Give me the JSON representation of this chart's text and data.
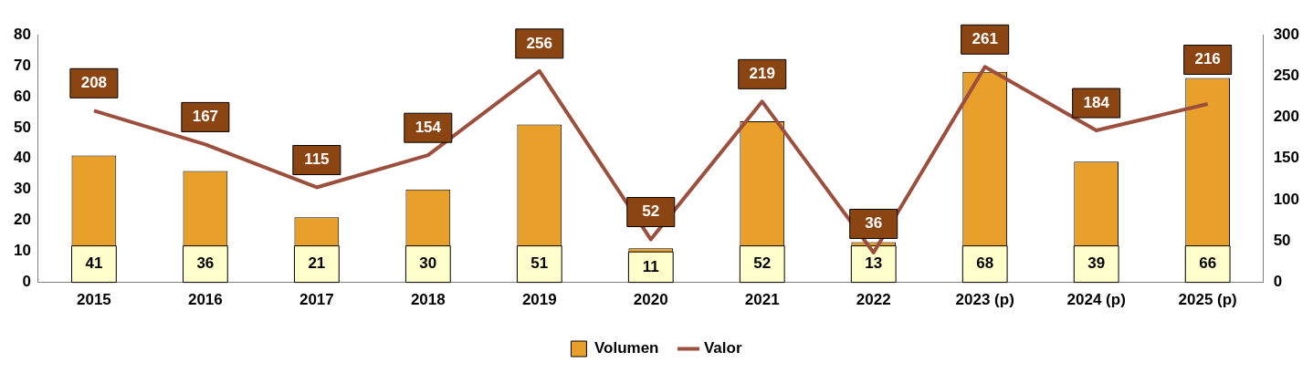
{
  "chart_data": {
    "type": "bar",
    "categories": [
      "2015",
      "2016",
      "2017",
      "2018",
      "2019",
      "2020",
      "2021",
      "2022",
      "2023 (p)",
      "2024 (p)",
      "2025 (p)"
    ],
    "series": [
      {
        "name": "Volumen",
        "color": "#e8a02a",
        "values": [
          41,
          36,
          21,
          30,
          51,
          11,
          52,
          13,
          68,
          39,
          66
        ]
      },
      {
        "name": "Valor",
        "type": "line",
        "axis": "y2",
        "color": "#9b4f3c",
        "values": [
          208,
          167,
          115,
          154,
          256,
          52,
          219,
          36,
          261,
          184,
          216
        ]
      }
    ],
    "ylim": [
      0,
      80
    ],
    "yticks": [
      0,
      10,
      20,
      30,
      40,
      50,
      60,
      70,
      80
    ],
    "y2lim": [
      0,
      300
    ],
    "y2ticks": [
      0,
      50,
      100,
      150,
      200,
      250,
      300
    ],
    "grid": false,
    "legend": "bottom",
    "data_labels": true,
    "marker": "none",
    "line_style": "solid"
  }
}
